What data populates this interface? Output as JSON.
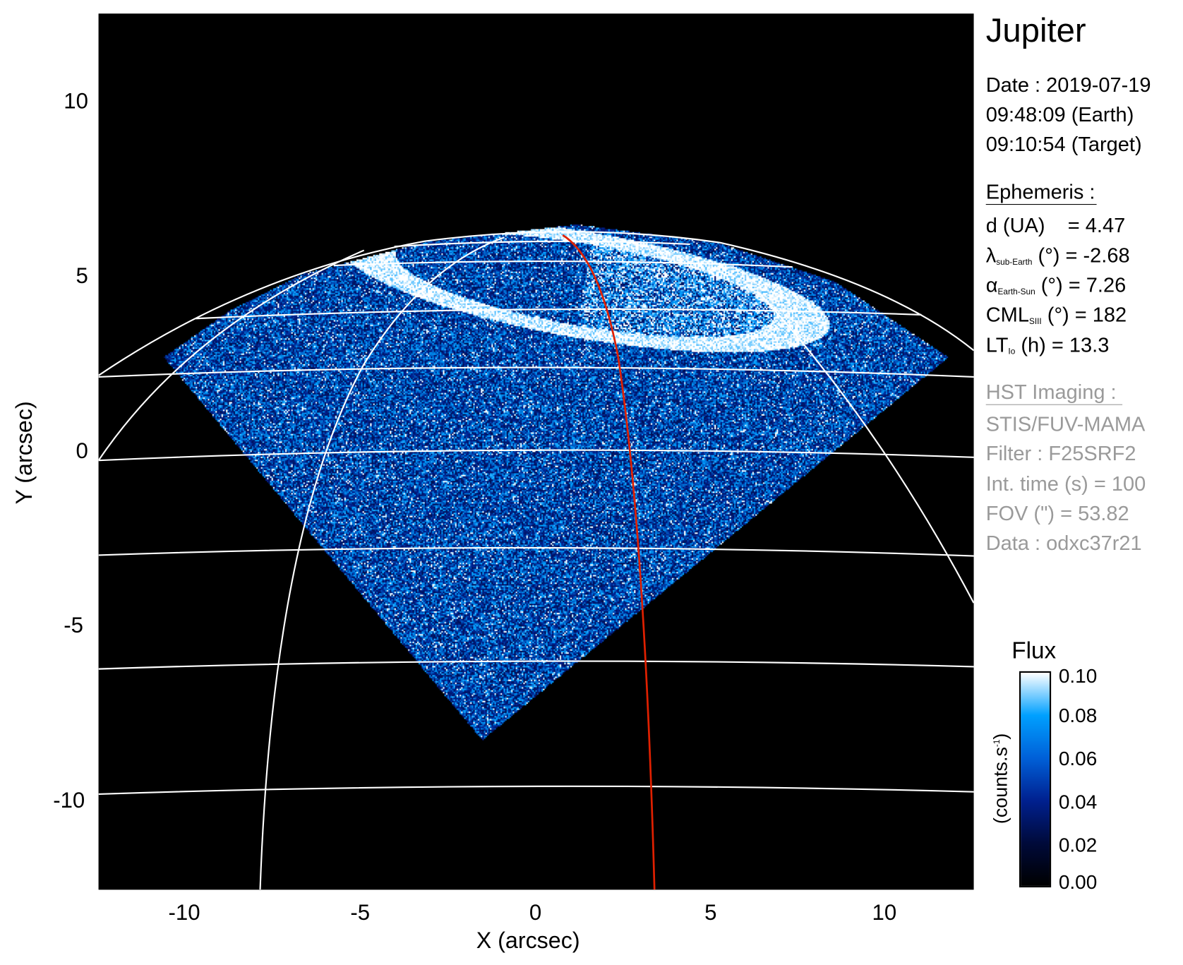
{
  "chart_data": {
    "type": "heatmap",
    "xlabel": "X (arcsec)",
    "ylabel": "Y (arcsec)",
    "xlim": [
      -12.5,
      12.5
    ],
    "ylim": [
      -12.5,
      12.5
    ],
    "xticks": [
      "-10",
      "-5",
      "0",
      "5",
      "10"
    ],
    "yticks": [
      "10",
      "5",
      "0",
      "-5",
      "-10"
    ],
    "grid": true,
    "colorbar": {
      "title": "Flux",
      "label": "(counts.s",
      "label_sup": "-1",
      "label_end": ")",
      "range": [
        0.0,
        0.1
      ],
      "ticks": [
        "0.10",
        "0.08",
        "0.06",
        "0.04",
        "0.02",
        "0.00"
      ],
      "colors": [
        "#000000",
        "#000a3a",
        "#00208f",
        "#0060d8",
        "#00a0ff",
        "#ffffff"
      ]
    },
    "overlay_colors": {
      "grid": "#ffffff",
      "meridian_highlight": "#e02000"
    }
  },
  "info": {
    "target": "Jupiter",
    "date_line": "Date : 2019-07-19",
    "earth_time": "09:48:09 (Earth)",
    "target_time": "09:10:54 (Target)",
    "ephemeris_title": "Ephemeris :",
    "ephemeris": [
      {
        "sym": "d (UA)",
        "sub": "",
        "rest": "    = 4.47"
      },
      {
        "sym": "λ",
        "sub": "sub-Earth",
        "rest": " (°) = -2.68"
      },
      {
        "sym": "α",
        "sub": "Earth-Sun",
        "rest": " (°) = 7.26"
      },
      {
        "sym": "CML",
        "sub": "SIII",
        "rest": " (°) = 182"
      },
      {
        "sym": "LT",
        "sub": "Io",
        "rest": " (h) = 13.3"
      }
    ],
    "imaging_title": "HST Imaging :",
    "imaging": [
      "STIS/FUV-MAMA",
      "Filter : F25SRF2",
      "Int. time (s) = 100",
      "FOV (\") = 53.82",
      "Data : odxc37r21"
    ]
  }
}
